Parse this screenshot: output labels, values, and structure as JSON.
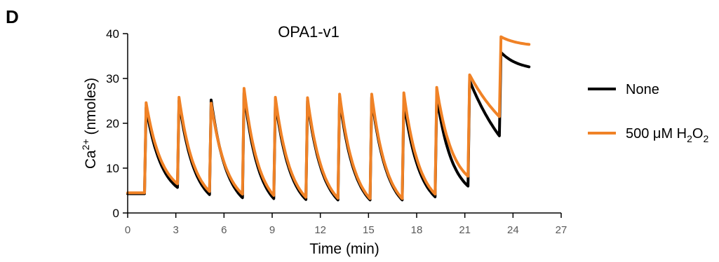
{
  "panel_label": "D",
  "chart_data": {
    "type": "line",
    "title": "OPA1-v1",
    "xlabel": "Time (min)",
    "ylabel": {
      "base": "Ca",
      "sup": "2+",
      "unit": " (nmoles)"
    },
    "xlim": [
      0,
      27
    ],
    "ylim": [
      0,
      40
    ],
    "xticks": [
      "0",
      "3",
      "6",
      "9",
      "12",
      "15",
      "18",
      "21",
      "24",
      "27"
    ],
    "yticks": [
      "0",
      "10",
      "20",
      "30",
      "40"
    ],
    "legend_position": "right",
    "series": [
      {
        "name": "None",
        "color": "#000000",
        "baseline": 4.3,
        "pulse_times": [
          1.05,
          3.1,
          5.1,
          7.15,
          9.1,
          11.1,
          13.1,
          15.1,
          17.1,
          19.15,
          21.2
        ],
        "peaks": [
          23.5,
          25.0,
          25.2,
          26.8,
          25.0,
          25.0,
          25.5,
          25.8,
          25.0,
          26.0,
          29.5
        ],
        "troughs": [
          5.7,
          4.1,
          3.4,
          3.2,
          3.0,
          2.9,
          2.9,
          2.9,
          3.6,
          6.0,
          17.2
        ],
        "final": {
          "start": 23.15,
          "end": 25.0,
          "peak": 35.8,
          "end_value": 32.6
        }
      },
      {
        "name": "500 μM H2O2",
        "label_parts": {
          "prefix": "500 μM H",
          "sub1": "2",
          "mid": "O",
          "sub2": "2"
        },
        "color": "#F08226",
        "baseline": 4.5,
        "pulse_times": [
          1.05,
          3.1,
          5.1,
          7.15,
          9.1,
          11.1,
          13.1,
          15.1,
          17.1,
          19.15,
          21.2
        ],
        "peaks": [
          24.6,
          25.8,
          24.5,
          27.8,
          25.8,
          25.7,
          26.5,
          26.5,
          26.8,
          28.0,
          30.8
        ],
        "troughs": [
          6.5,
          4.8,
          4.2,
          3.9,
          3.5,
          3.3,
          3.2,
          3.2,
          4.2,
          8.2,
          21.5
        ],
        "final": {
          "start": 23.15,
          "end": 25.0,
          "peak": 39.3,
          "end_value": 37.6
        }
      }
    ]
  }
}
